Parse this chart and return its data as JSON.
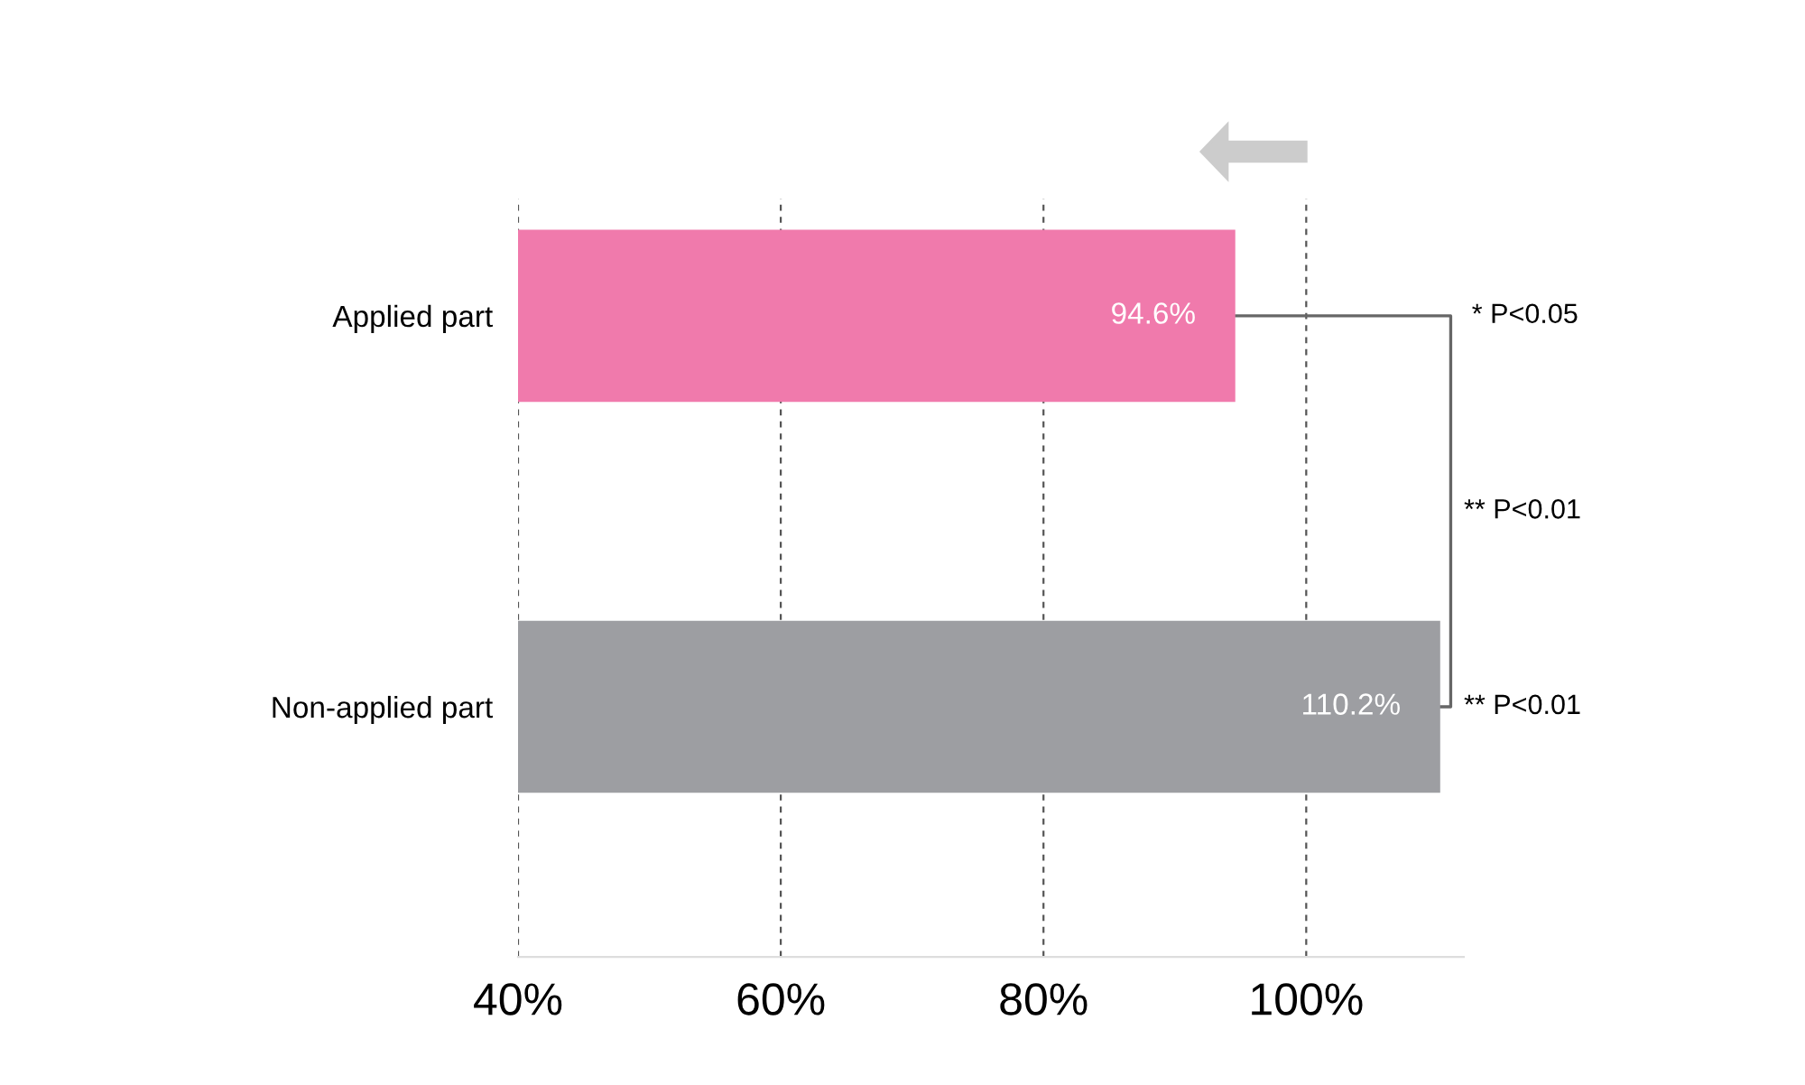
{
  "chart_data": {
    "type": "bar",
    "orientation": "horizontal",
    "categories": [
      "Applied part",
      "Non-applied part"
    ],
    "values": [
      94.6,
      110.2
    ],
    "colors": [
      "#f07aac",
      "#9d9ea2"
    ],
    "value_labels": [
      "94.6%",
      "110.2%"
    ],
    "xlim": [
      40,
      112
    ],
    "xticks": [
      {
        "value": 40,
        "label": "40%"
      },
      {
        "value": 60,
        "label": "60%"
      },
      {
        "value": 80,
        "label": "80%"
      },
      {
        "value": 100,
        "label": "100%"
      }
    ],
    "grid": "x",
    "annotations": [
      "* P<0.05",
      "** P<0.01",
      "** P<0.01"
    ]
  }
}
